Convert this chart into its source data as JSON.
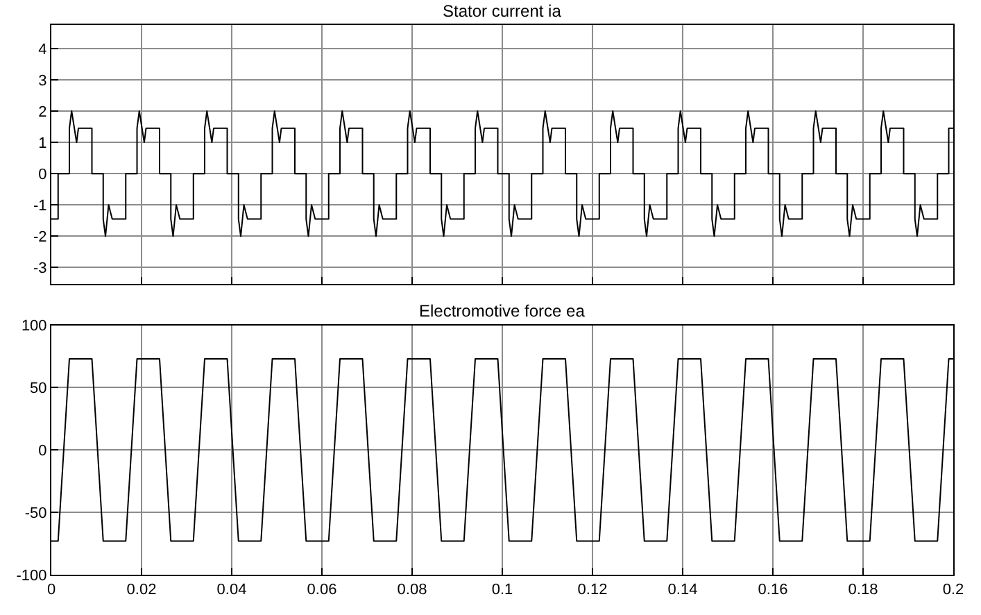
{
  "chart_data": [
    {
      "type": "line",
      "title": "Stator current ia",
      "xlim": [
        0,
        0.2
      ],
      "xticks": [
        0,
        0.02,
        0.04,
        0.06,
        0.08,
        0.1,
        0.12,
        0.14,
        0.16,
        0.18,
        0.2
      ],
      "ylim": [
        -3.53,
        4.75
      ],
      "yticks": [
        -3,
        -2,
        -1,
        0,
        1,
        2,
        3,
        4
      ],
      "grid": true,
      "tick_labels": "y",
      "series": [
        {
          "color": "#000000",
          "x": [
            0,
            0.0015,
            0.0015,
            0.004,
            0.004,
            0.0045,
            0.0056,
            0.006,
            0.009,
            0.009,
            0.0115,
            0.0115,
            0.012,
            0.0127,
            0.0135,
            0.0165,
            0.0165,
            0.019,
            0.019,
            0.0195,
            0.0206,
            0.021,
            0.024,
            0.024,
            0.0265,
            0.0265,
            0.027,
            0.0277,
            0.0285,
            0.0315,
            0.0315,
            0.034,
            0.034,
            0.0345,
            0.0356,
            0.036,
            0.039,
            0.039,
            0.0415,
            0.0415,
            0.042,
            0.0427,
            0.0435,
            0.0465,
            0.0465,
            0.049,
            0.049,
            0.0495,
            0.0506,
            0.051,
            0.054,
            0.054,
            0.0565,
            0.0565,
            0.057,
            0.0577,
            0.0585,
            0.0615,
            0.0615,
            0.064,
            0.064,
            0.0645,
            0.0656,
            0.066,
            0.069,
            0.069,
            0.0715,
            0.0715,
            0.072,
            0.0727,
            0.0735,
            0.0765,
            0.0765,
            0.079,
            0.079,
            0.0795,
            0.0806,
            0.081,
            0.084,
            0.084,
            0.0865,
            0.0865,
            0.087,
            0.0877,
            0.0885,
            0.0915,
            0.0915,
            0.094,
            0.094,
            0.0945,
            0.0956,
            0.096,
            0.099,
            0.099,
            0.1015,
            0.1015,
            0.102,
            0.1027,
            0.1035,
            0.1065,
            0.1065,
            0.109,
            0.109,
            0.1095,
            0.1106,
            0.111,
            0.114,
            0.114,
            0.1165,
            0.1165,
            0.117,
            0.1177,
            0.1185,
            0.1215,
            0.1215,
            0.124,
            0.124,
            0.1245,
            0.1256,
            0.126,
            0.129,
            0.129,
            0.1315,
            0.1315,
            0.132,
            0.1327,
            0.1335,
            0.1365,
            0.1365,
            0.139,
            0.139,
            0.1395,
            0.1406,
            0.141,
            0.144,
            0.144,
            0.1465,
            0.1465,
            0.147,
            0.1477,
            0.1485,
            0.1515,
            0.1515,
            0.154,
            0.154,
            0.1545,
            0.1556,
            0.156,
            0.159,
            0.159,
            0.1615,
            0.1615,
            0.162,
            0.1627,
            0.1635,
            0.1665,
            0.1665,
            0.169,
            0.169,
            0.1695,
            0.1706,
            0.171,
            0.174,
            0.174,
            0.1765,
            0.1765,
            0.177,
            0.1777,
            0.1785,
            0.1815,
            0.1815,
            0.184,
            0.184,
            0.1845,
            0.1856,
            0.186,
            0.189,
            0.189,
            0.1915,
            0.1915,
            0.192,
            0.1927,
            0.1935,
            0.1965,
            0.1965,
            0.199,
            0.199,
            0.2
          ],
          "values": [
            -1.45,
            -1.45,
            0,
            0,
            1.45,
            2,
            1,
            1.45,
            1.45,
            0,
            0,
            -1.45,
            -2,
            -1,
            -1.45,
            -1.45,
            0,
            0,
            1.45,
            2,
            1,
            1.45,
            1.45,
            0,
            0,
            -1.45,
            -2,
            -1,
            -1.45,
            -1.45,
            0,
            0,
            1.45,
            2,
            1,
            1.45,
            1.45,
            0,
            0,
            -1.45,
            -2,
            -1,
            -1.45,
            -1.45,
            0,
            0,
            1.45,
            2,
            1,
            1.45,
            1.45,
            0,
            0,
            -1.45,
            -2,
            -1,
            -1.45,
            -1.45,
            0,
            0,
            1.45,
            2,
            1,
            1.45,
            1.45,
            0,
            0,
            -1.45,
            -2,
            -1,
            -1.45,
            -1.45,
            0,
            0,
            1.45,
            2,
            1,
            1.45,
            1.45,
            0,
            0,
            -1.45,
            -2,
            -1,
            -1.45,
            -1.45,
            0,
            0,
            1.45,
            2,
            1,
            1.45,
            1.45,
            0,
            0,
            -1.45,
            -2,
            -1,
            -1.45,
            -1.45,
            0,
            0,
            1.45,
            2,
            1,
            1.45,
            1.45,
            0,
            0,
            -1.45,
            -2,
            -1,
            -1.45,
            -1.45,
            0,
            0,
            1.45,
            2,
            1,
            1.45,
            1.45,
            0,
            0,
            -1.45,
            -2,
            -1,
            -1.45,
            -1.45,
            0,
            0,
            1.45,
            2,
            1,
            1.45,
            1.45,
            0,
            0,
            -1.45,
            -2,
            -1,
            -1.45,
            -1.45,
            0,
            0,
            1.45,
            2,
            1,
            1.45,
            1.45,
            0,
            0,
            -1.45,
            -2,
            -1,
            -1.45,
            -1.45,
            0,
            0,
            1.45,
            2,
            1,
            1.45,
            1.45,
            0,
            0,
            -1.45,
            -2,
            -1,
            -1.45,
            -1.45,
            0,
            0,
            1.45,
            2,
            1,
            1.45,
            1.45,
            0,
            0,
            -1.45,
            -2,
            -1,
            -1.45,
            -1.45,
            0,
            0,
            1.45,
            1.45
          ]
        }
      ]
    },
    {
      "type": "line",
      "title": "Electromotive force ea",
      "xlim": [
        0,
        0.2
      ],
      "xticks": [
        0,
        0.02,
        0.04,
        0.06,
        0.08,
        0.1,
        0.12,
        0.14,
        0.16,
        0.18,
        0.2
      ],
      "ylim": [
        -100,
        100
      ],
      "yticks": [
        -100,
        -50,
        0,
        50,
        100
      ],
      "grid": true,
      "series": [
        {
          "color": "#000000",
          "x": [
            0,
            0.0015,
            0.004,
            0.009,
            0.0115,
            0.0165,
            0.019,
            0.024,
            0.0265,
            0.0315,
            0.034,
            0.039,
            0.0415,
            0.0465,
            0.049,
            0.054,
            0.0565,
            0.0615,
            0.064,
            0.069,
            0.0715,
            0.0765,
            0.079,
            0.084,
            0.0865,
            0.0915,
            0.094,
            0.099,
            0.1015,
            0.1065,
            0.109,
            0.114,
            0.1165,
            0.1215,
            0.124,
            0.129,
            0.1315,
            0.1365,
            0.139,
            0.144,
            0.1465,
            0.1515,
            0.154,
            0.159,
            0.1615,
            0.1665,
            0.169,
            0.174,
            0.1765,
            0.1815,
            0.184,
            0.189,
            0.1915,
            0.1965,
            0.199,
            0.2
          ],
          "values": [
            -73,
            -73,
            73,
            73,
            -73,
            -73,
            73,
            73,
            -73,
            -73,
            73,
            73,
            -73,
            -73,
            73,
            73,
            -73,
            -73,
            73,
            73,
            -73,
            -73,
            73,
            73,
            -73,
            -73,
            73,
            73,
            -73,
            -73,
            73,
            73,
            -73,
            -73,
            73,
            73,
            -73,
            -73,
            73,
            73,
            -73,
            -73,
            73,
            73,
            -73,
            -73,
            73,
            73,
            -73,
            -73,
            73,
            73,
            -73,
            -73,
            73,
            73
          ]
        }
      ]
    }
  ]
}
